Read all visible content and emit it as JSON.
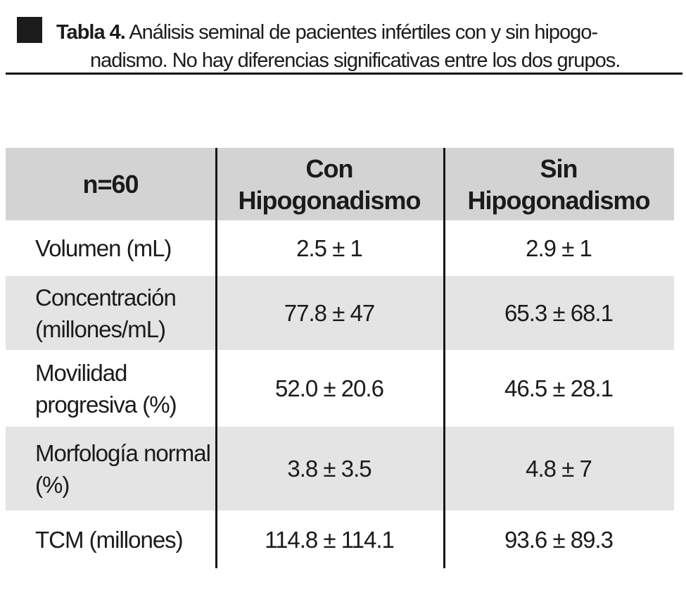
{
  "title": {
    "label": "Tabla 4.",
    "line1": "Análisis seminal de pacientes infértiles con y sin hipogo-",
    "line2": "nadismo. No hay diferencias significativas entre los dos grupos."
  },
  "table": {
    "n_label": "n=60",
    "columns": [
      {
        "lines": [
          "Con",
          "Hipogonadismo"
        ]
      },
      {
        "lines": [
          "Sin",
          "Hipogonadismo"
        ]
      }
    ],
    "rows": [
      {
        "parameter": [
          "Volumen (mL)"
        ],
        "con": "2.5 ± 1",
        "sin": "2.9 ± 1"
      },
      {
        "parameter": [
          "Concentración",
          "(millones/mL)"
        ],
        "con": "77.8 ± 47",
        "sin": "65.3 ± 68.1"
      },
      {
        "parameter": [
          "Movilidad",
          "progresiva (%)"
        ],
        "con": "52.0 ± 20.6",
        "sin": "46.5 ± 28.1"
      },
      {
        "parameter": [
          "Morfología normal",
          "(%)"
        ],
        "con": "3.8 ± 3.5",
        "sin": "4.8 ± 7"
      },
      {
        "parameter": [
          "TCM (millones)"
        ],
        "con": "114.8 ± 114.1",
        "sin": "93.6 ± 89.3"
      }
    ]
  },
  "colors": {
    "header_gray": "#d3d3d3",
    "stripe_gray": "#e4e4e4",
    "ink": "#1b1b1b"
  }
}
